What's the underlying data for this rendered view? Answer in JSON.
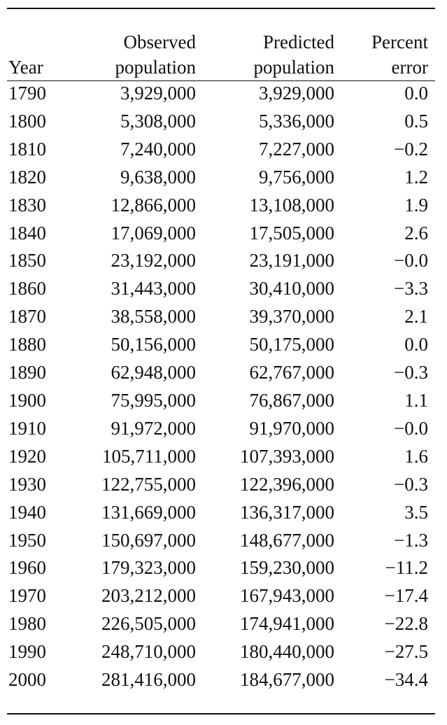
{
  "table": {
    "headers": {
      "year": "Year",
      "observed": [
        "Observed",
        "population"
      ],
      "predicted": [
        "Predicted",
        "population"
      ],
      "error": [
        "Percent",
        "error"
      ]
    },
    "rows": [
      {
        "year": "1790",
        "observed": "3,929,000",
        "predicted": "3,929,000",
        "error": "0.0"
      },
      {
        "year": "1800",
        "observed": "5,308,000",
        "predicted": "5,336,000",
        "error": "0.5"
      },
      {
        "year": "1810",
        "observed": "7,240,000",
        "predicted": "7,227,000",
        "error": "−0.2"
      },
      {
        "year": "1820",
        "observed": "9,638,000",
        "predicted": "9,756,000",
        "error": "1.2"
      },
      {
        "year": "1830",
        "observed": "12,866,000",
        "predicted": "13,108,000",
        "error": "1.9"
      },
      {
        "year": "1840",
        "observed": "17,069,000",
        "predicted": "17,505,000",
        "error": "2.6"
      },
      {
        "year": "1850",
        "observed": "23,192,000",
        "predicted": "23,191,000",
        "error": "−0.0"
      },
      {
        "year": "1860",
        "observed": "31,443,000",
        "predicted": "30,410,000",
        "error": "−3.3"
      },
      {
        "year": "1870",
        "observed": "38,558,000",
        "predicted": "39,370,000",
        "error": "2.1"
      },
      {
        "year": "1880",
        "observed": "50,156,000",
        "predicted": "50,175,000",
        "error": "0.0"
      },
      {
        "year": "1890",
        "observed": "62,948,000",
        "predicted": "62,767,000",
        "error": "−0.3"
      },
      {
        "year": "1900",
        "observed": "75,995,000",
        "predicted": "76,867,000",
        "error": "1.1"
      },
      {
        "year": "1910",
        "observed": "91,972,000",
        "predicted": "91,970,000",
        "error": "−0.0"
      },
      {
        "year": "1920",
        "observed": "105,711,000",
        "predicted": "107,393,000",
        "error": "1.6"
      },
      {
        "year": "1930",
        "observed": "122,755,000",
        "predicted": "122,396,000",
        "error": "−0.3"
      },
      {
        "year": "1940",
        "observed": "131,669,000",
        "predicted": "136,317,000",
        "error": "3.5"
      },
      {
        "year": "1950",
        "observed": "150,697,000",
        "predicted": "148,677,000",
        "error": "−1.3"
      },
      {
        "year": "1960",
        "observed": "179,323,000",
        "predicted": "159,230,000",
        "error": "−11.2"
      },
      {
        "year": "1970",
        "observed": "203,212,000",
        "predicted": "167,943,000",
        "error": "−17.4"
      },
      {
        "year": "1980",
        "observed": "226,505,000",
        "predicted": "174,941,000",
        "error": "−22.8"
      },
      {
        "year": "1990",
        "observed": "248,710,000",
        "predicted": "180,440,000",
        "error": "−27.5"
      },
      {
        "year": "2000",
        "observed": "281,416,000",
        "predicted": "184,677,000",
        "error": "−34.4"
      }
    ]
  }
}
